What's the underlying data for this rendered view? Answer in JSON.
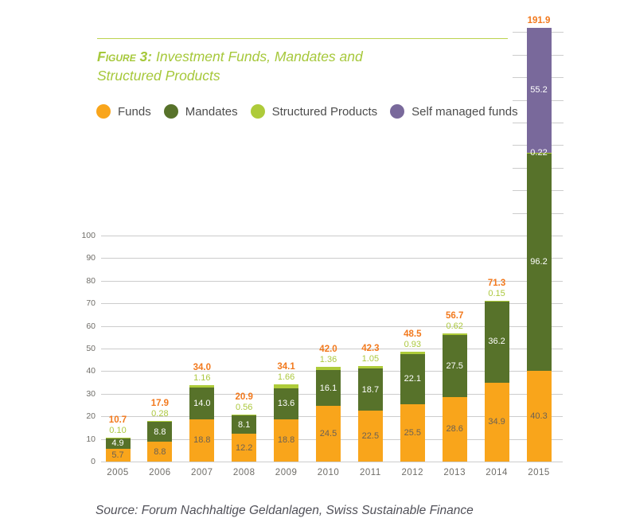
{
  "figure": {
    "label": "Figure 3:",
    "title": "Investment Funds, Mandates and Structured Products"
  },
  "legend": [
    {
      "name": "Funds",
      "color": "#f9a51b"
    },
    {
      "name": "Mandates",
      "color": "#57722a"
    },
    {
      "name": "Structured Products",
      "color": "#aecb3a"
    },
    {
      "name": "Self managed funds",
      "color": "#79699b"
    }
  ],
  "source": "Source: Forum Nachhaltige Geldanlagen, Swiss Sustainable Finance",
  "colors": {
    "total_label": "#f2791d",
    "structured_label": "#acc83e",
    "funds_inner_label": "#6c6154",
    "white_inner_label": "#ffffff",
    "gridline": "#cccccc",
    "axis_text": "#6f6d68",
    "title_green": "#a6c83b",
    "rule_green": "#bcd24e"
  },
  "chart_data": {
    "type": "bar",
    "stacked": true,
    "title": "Figure 3: Investment Funds, Mandates and Structured Products",
    "xlabel": "",
    "ylabel": "",
    "legend_position": "top-left",
    "grid": true,
    "ylim": [
      0,
      100
    ],
    "yticks": [
      0,
      10,
      20,
      30,
      40,
      50,
      60,
      70,
      80,
      90,
      100
    ],
    "extra_tick_lines": [
      110,
      120,
      130,
      140,
      150,
      160,
      170,
      180,
      190
    ],
    "categories": [
      "2005",
      "2006",
      "2007",
      "2008",
      "2009",
      "2010",
      "2011",
      "2012",
      "2013",
      "2014",
      "2015"
    ],
    "series": [
      {
        "key": "funds",
        "name": "Funds",
        "color": "#f9a51b",
        "values": [
          5.7,
          8.8,
          18.8,
          12.2,
          18.8,
          24.5,
          22.5,
          25.5,
          28.6,
          34.9,
          40.3
        ],
        "labels": [
          "5.7",
          "8.8",
          "18.8",
          "12.2",
          "18.8",
          "24.5",
          "22.5",
          "25.5",
          "28.6",
          "34.9",
          "40.3"
        ],
        "text_color": "#6c6154",
        "show_inside": true
      },
      {
        "key": "mandates",
        "name": "Mandates",
        "color": "#57722a",
        "values": [
          4.9,
          8.8,
          14.0,
          8.1,
          13.6,
          16.1,
          18.7,
          22.1,
          27.5,
          36.2,
          96.2
        ],
        "labels": [
          "4.9",
          "8.8",
          "14.0",
          "8.1",
          "13.6",
          "16.1",
          "18.7",
          "22.1",
          "27.5",
          "36.2",
          "96.2"
        ],
        "text_color": "#ffffff",
        "show_inside": true
      },
      {
        "key": "structured",
        "name": "Structured Products",
        "color": "#aecb3a",
        "values": [
          0.1,
          0.28,
          1.16,
          0.56,
          1.66,
          1.36,
          1.05,
          0.93,
          0.62,
          0.15,
          0.22
        ],
        "labels": [
          "0.10",
          "0.28",
          "1.16",
          "0.56",
          "1.66",
          "1.36",
          "1.05",
          "0.93",
          "0.62",
          "0.15",
          "0.22"
        ],
        "text_color": "#acc83e",
        "show_inside": false
      },
      {
        "key": "self_managed",
        "name": "Self managed funds",
        "color": "#79699b",
        "values": [
          0,
          0,
          0,
          0,
          0,
          0,
          0,
          0,
          0,
          0,
          55.2
        ],
        "labels": [
          "",
          "",
          "",
          "",
          "",
          "",
          "",
          "",
          "",
          "",
          "55.2"
        ],
        "text_color": "#ffffff",
        "show_inside": true
      }
    ],
    "totals": [
      "10.7",
      "17.9",
      "34.0",
      "20.9",
      "34.1",
      "42.0",
      "42.3",
      "48.5",
      "56.7",
      "71.3",
      "191.9"
    ]
  }
}
